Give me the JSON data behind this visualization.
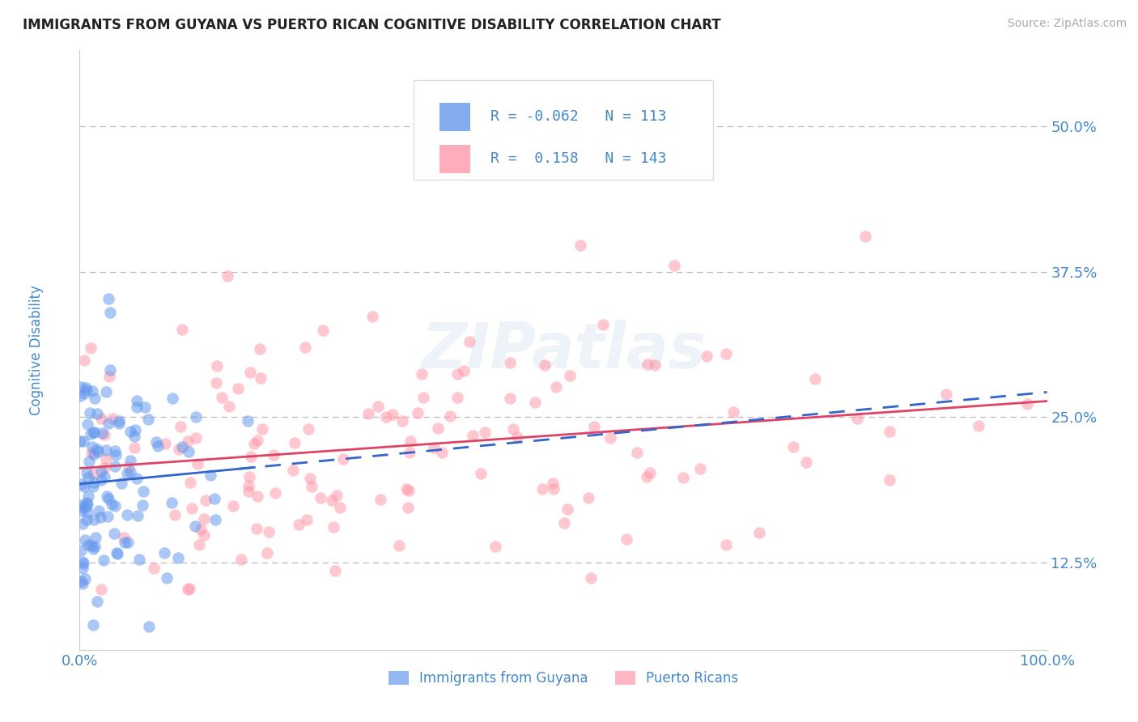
{
  "title": "IMMIGRANTS FROM GUYANA VS PUERTO RICAN COGNITIVE DISABILITY CORRELATION CHART",
  "source": "Source: ZipAtlas.com",
  "ylabel": "Cognitive Disability",
  "legend_label1": "Immigrants from Guyana",
  "legend_label2": "Puerto Ricans",
  "R1": -0.062,
  "N1": 113,
  "R2": 0.158,
  "N2": 143,
  "color1": "#6699ee",
  "color2": "#ff99aa",
  "line_color1": "#3366cc",
  "line_color2": "#dd4466",
  "title_color": "#222222",
  "legend_text_color": "#4488cc",
  "axis_label_color": "#4488cc",
  "tick_label_color": "#4488cc",
  "source_color": "#aaaaaa",
  "xlim": [
    0.0,
    1.0
  ],
  "ylim": [
    0.05,
    0.565
  ],
  "yticks": [
    0.125,
    0.25,
    0.375,
    0.5
  ],
  "ytick_labels": [
    "12.5%",
    "25.0%",
    "37.5%",
    "50.0%"
  ],
  "xticks": [
    0.0,
    1.0
  ],
  "xtick_labels": [
    "0.0%",
    "100.0%"
  ],
  "background_color": "#ffffff",
  "grid_color": "#bbbbbb",
  "watermark": "ZIPatlas",
  "seed": 42,
  "n_blue": 113,
  "n_pink": 143
}
